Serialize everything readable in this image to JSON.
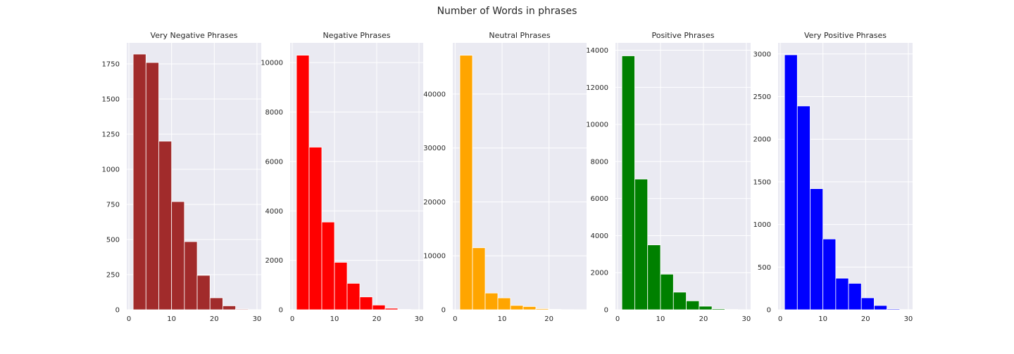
{
  "figure": {
    "suptitle": "Number of Words in phrases"
  },
  "chart_data": [
    {
      "type": "bar",
      "title": "Very Negative Phrases",
      "color": "#a12b2b",
      "x_ticks": [
        0,
        10,
        20,
        30
      ],
      "y_ticks": [
        0,
        250,
        500,
        750,
        1000,
        1250,
        1500,
        1750
      ],
      "xlim": [
        -0.5,
        31
      ],
      "ylim": [
        0,
        1900
      ],
      "bins": [
        {
          "x0": 1,
          "x1": 4,
          "count": 1820
        },
        {
          "x0": 4,
          "x1": 7,
          "count": 1760
        },
        {
          "x0": 7,
          "x1": 10,
          "count": 1200
        },
        {
          "x0": 10,
          "x1": 13,
          "count": 770
        },
        {
          "x0": 13,
          "x1": 16,
          "count": 485
        },
        {
          "x0": 16,
          "x1": 19,
          "count": 245
        },
        {
          "x0": 19,
          "x1": 22,
          "count": 85
        },
        {
          "x0": 22,
          "x1": 25,
          "count": 28
        },
        {
          "x0": 25,
          "x1": 28,
          "count": 5
        },
        {
          "x0": 28,
          "x1": 31,
          "count": 1
        }
      ]
    },
    {
      "type": "bar",
      "title": "Negative Phrases",
      "color": "#ff0000",
      "x_ticks": [
        0,
        10,
        20,
        30
      ],
      "y_ticks": [
        0,
        2000,
        4000,
        6000,
        8000,
        10000
      ],
      "xlim": [
        -0.5,
        31
      ],
      "ylim": [
        0,
        10800
      ],
      "bins": [
        {
          "x0": 1,
          "x1": 4,
          "count": 10300
        },
        {
          "x0": 4,
          "x1": 7,
          "count": 6580
        },
        {
          "x0": 7,
          "x1": 10,
          "count": 3550
        },
        {
          "x0": 10,
          "x1": 13,
          "count": 1920
        },
        {
          "x0": 13,
          "x1": 16,
          "count": 1070
        },
        {
          "x0": 16,
          "x1": 19,
          "count": 520
        },
        {
          "x0": 19,
          "x1": 22,
          "count": 190
        },
        {
          "x0": 22,
          "x1": 25,
          "count": 60
        },
        {
          "x0": 25,
          "x1": 28,
          "count": 15
        },
        {
          "x0": 28,
          "x1": 31,
          "count": 3
        }
      ]
    },
    {
      "type": "bar",
      "title": "Neutral Phrases",
      "color": "#ffa500",
      "x_ticks": [
        0,
        10,
        20
      ],
      "y_ticks": [
        0,
        10000,
        20000,
        30000,
        40000
      ],
      "xlim": [
        -0.5,
        28
      ],
      "ylim": [
        0,
        49500
      ],
      "bins": [
        {
          "x0": 1,
          "x1": 3.7,
          "count": 47200
        },
        {
          "x0": 3.7,
          "x1": 6.4,
          "count": 11500
        },
        {
          "x0": 6.4,
          "x1": 9.1,
          "count": 3100
        },
        {
          "x0": 9.1,
          "x1": 11.8,
          "count": 2200
        },
        {
          "x0": 11.8,
          "x1": 14.5,
          "count": 800
        },
        {
          "x0": 14.5,
          "x1": 17.2,
          "count": 600
        },
        {
          "x0": 17.2,
          "x1": 19.9,
          "count": 200
        },
        {
          "x0": 19.9,
          "x1": 22.6,
          "count": 80
        },
        {
          "x0": 22.6,
          "x1": 25.3,
          "count": 25
        },
        {
          "x0": 25.3,
          "x1": 28,
          "count": 5
        }
      ]
    },
    {
      "type": "bar",
      "title": "Positive Phrases",
      "color": "#008000",
      "x_ticks": [
        0,
        10,
        20,
        30
      ],
      "y_ticks": [
        0,
        2000,
        4000,
        6000,
        8000,
        10000,
        12000,
        14000
      ],
      "xlim": [
        -0.5,
        31
      ],
      "ylim": [
        0,
        14400
      ],
      "bins": [
        {
          "x0": 1,
          "x1": 4,
          "count": 13700
        },
        {
          "x0": 4,
          "x1": 7,
          "count": 7050
        },
        {
          "x0": 7,
          "x1": 10,
          "count": 3500
        },
        {
          "x0": 10,
          "x1": 13,
          "count": 1920
        },
        {
          "x0": 13,
          "x1": 16,
          "count": 950
        },
        {
          "x0": 16,
          "x1": 19,
          "count": 480
        },
        {
          "x0": 19,
          "x1": 22,
          "count": 190
        },
        {
          "x0": 22,
          "x1": 25,
          "count": 55
        },
        {
          "x0": 25,
          "x1": 28,
          "count": 15
        },
        {
          "x0": 28,
          "x1": 31,
          "count": 3
        }
      ]
    },
    {
      "type": "bar",
      "title": "Very Positive Phrases",
      "color": "#0000ff",
      "x_ticks": [
        0,
        10,
        20,
        30
      ],
      "y_ticks": [
        0,
        500,
        1000,
        1500,
        2000,
        2500,
        3000
      ],
      "xlim": [
        -0.5,
        31
      ],
      "ylim": [
        0,
        3130
      ],
      "bins": [
        {
          "x0": 1,
          "x1": 4,
          "count": 2990
        },
        {
          "x0": 4,
          "x1": 7,
          "count": 2390
        },
        {
          "x0": 7,
          "x1": 10,
          "count": 1420
        },
        {
          "x0": 10,
          "x1": 13,
          "count": 830
        },
        {
          "x0": 13,
          "x1": 16,
          "count": 370
        },
        {
          "x0": 16,
          "x1": 19,
          "count": 310
        },
        {
          "x0": 19,
          "x1": 22,
          "count": 140
        },
        {
          "x0": 22,
          "x1": 25,
          "count": 50
        },
        {
          "x0": 25,
          "x1": 28,
          "count": 10
        },
        {
          "x0": 28,
          "x1": 31,
          "count": 2
        }
      ]
    }
  ]
}
